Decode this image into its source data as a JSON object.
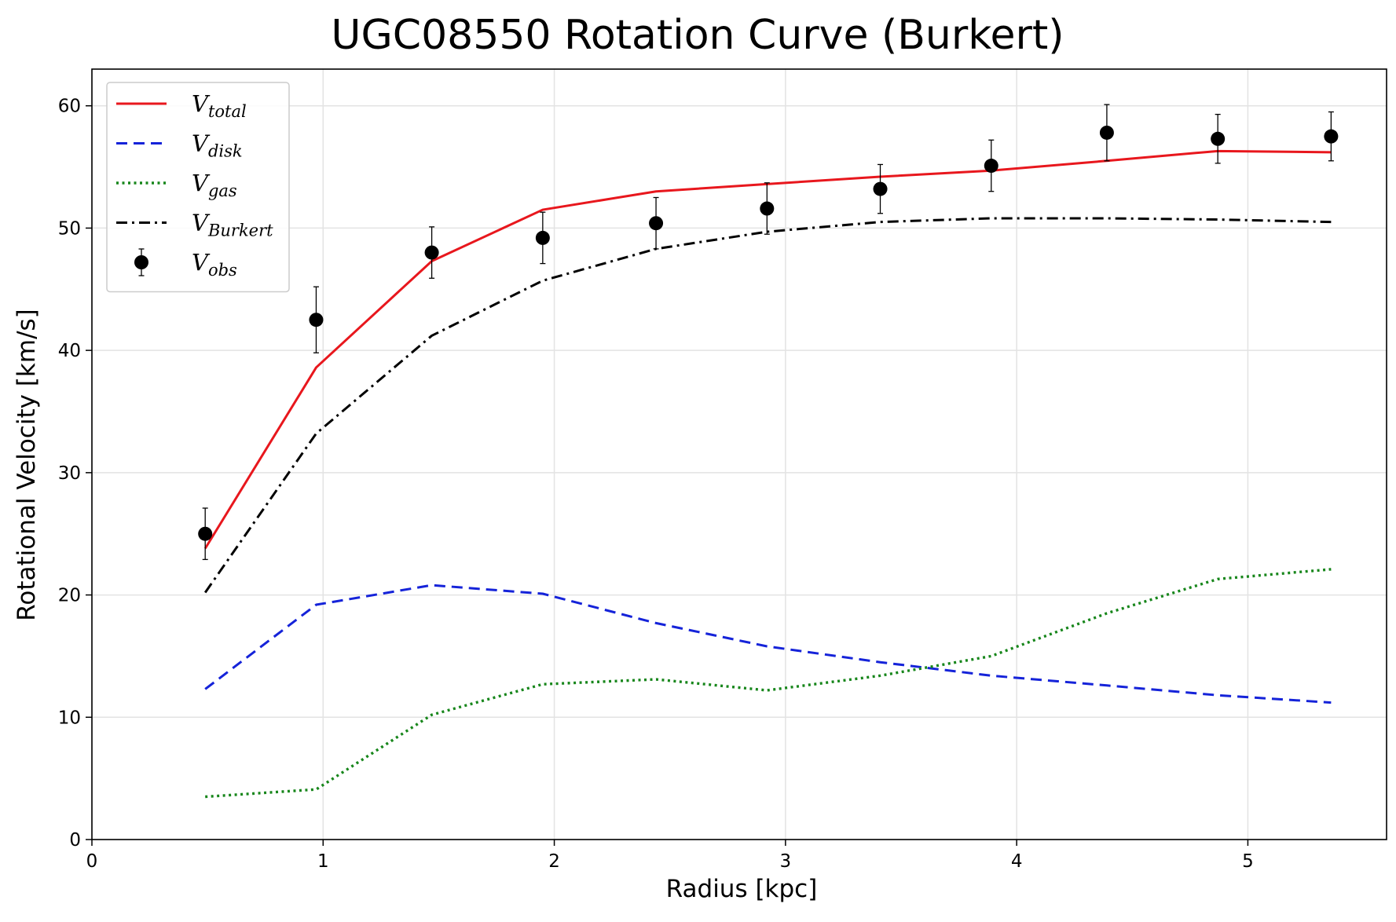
{
  "chart_data": {
    "type": "line",
    "title": "UGC08550 Rotation Curve (Burkert)",
    "xlabel": "Radius [kpc]",
    "ylabel": "Rotational Velocity [km/s]",
    "xlim": [
      0,
      5.6
    ],
    "ylim": [
      0,
      63
    ],
    "xticks": [
      0,
      1,
      2,
      3,
      4,
      5
    ],
    "xtick_labels": [
      "0",
      "1",
      "2",
      "3",
      "4",
      "5"
    ],
    "yticks": [
      0,
      10,
      20,
      30,
      40,
      50,
      60
    ],
    "ytick_labels": [
      "0",
      "10",
      "20",
      "30",
      "40",
      "50",
      "60"
    ],
    "grid": true,
    "legend_position": "top-left",
    "x": [
      0.49,
      0.97,
      1.47,
      1.95,
      2.44,
      2.92,
      3.41,
      3.89,
      4.39,
      4.87,
      5.36
    ],
    "series": [
      {
        "name": "V",
        "subscript": "total",
        "style": "solid",
        "color": "#e8171d",
        "marker": "none",
        "values": [
          23.8,
          38.6,
          47.3,
          51.5,
          53.0,
          53.6,
          54.2,
          54.7,
          55.5,
          56.3,
          56.2
        ]
      },
      {
        "name": "V",
        "subscript": "disk",
        "style": "dashed",
        "color": "#1523d9",
        "marker": "none",
        "values": [
          12.3,
          19.2,
          20.8,
          20.1,
          17.7,
          15.8,
          14.5,
          13.4,
          12.6,
          11.8,
          11.2
        ]
      },
      {
        "name": "V",
        "subscript": "gas",
        "style": "dotted",
        "color": "#17861b",
        "marker": "none",
        "values": [
          3.5,
          4.1,
          10.2,
          12.7,
          13.1,
          12.2,
          13.4,
          15.0,
          18.5,
          21.3,
          22.1
        ]
      },
      {
        "name": "V",
        "subscript": "Burkert",
        "style": "dashdot",
        "color": "#000000",
        "marker": "none",
        "values": [
          20.2,
          33.2,
          41.2,
          45.7,
          48.3,
          49.7,
          50.5,
          50.8,
          50.8,
          50.7,
          50.5
        ]
      },
      {
        "name": "V",
        "subscript": "obs",
        "style": "none",
        "color": "#000000",
        "marker": "circle",
        "values": [
          25.0,
          42.5,
          48.0,
          49.2,
          50.4,
          51.6,
          53.2,
          55.1,
          57.8,
          57.3,
          57.5
        ],
        "errors": [
          2.1,
          2.7,
          2.1,
          2.1,
          2.1,
          2.1,
          2.0,
          2.1,
          2.3,
          2.0,
          2.0
        ]
      }
    ]
  }
}
